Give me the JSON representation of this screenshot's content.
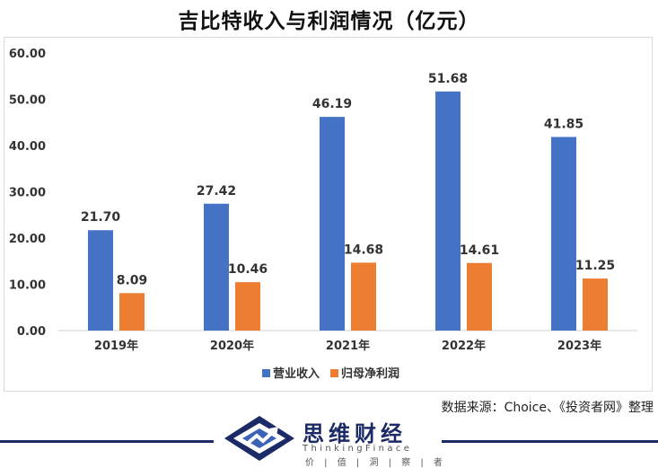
{
  "page": {
    "title": "吉比特收入与利润情况（亿元）",
    "source": "数据来源：Choice、《投资者网》整理",
    "brand": {
      "name": "思维财经",
      "english": "ThinkingFinace",
      "tagline": "价 | 值 | 洞 | 察 | 者"
    }
  },
  "chart_data": {
    "type": "bar",
    "title": "吉比特收入与利润情况（亿元）",
    "categories": [
      "2019年",
      "2020年",
      "2021年",
      "2022年",
      "2023年"
    ],
    "series": [
      {
        "name": "营业收入",
        "values": [
          21.7,
          27.42,
          46.19,
          51.68,
          41.85
        ],
        "labels": [
          "21.70",
          "27.42",
          "46.19",
          "51.68",
          "41.85"
        ],
        "color": "#4472c4"
      },
      {
        "name": "归母净利润",
        "values": [
          8.09,
          10.46,
          14.68,
          14.61,
          11.25
        ],
        "labels": [
          "8.09",
          "10.46",
          "14.68",
          "14.61",
          "11.25"
        ],
        "color": "#ed7d31"
      }
    ],
    "yticks": [
      "0.00",
      "10.00",
      "20.00",
      "30.00",
      "40.00",
      "50.00",
      "60.00"
    ],
    "ylim": [
      0,
      60
    ],
    "xlabel": "",
    "ylabel": "",
    "grid": false,
    "legend": "bottom"
  }
}
